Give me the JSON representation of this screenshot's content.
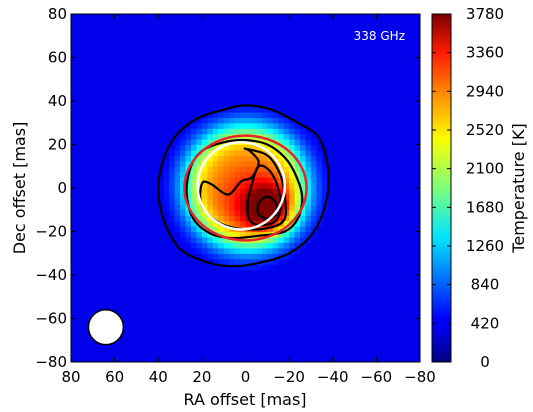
{
  "chart_data": {
    "type": "heatmap",
    "title": "",
    "annotation": "338 GHz",
    "xlabel": "RA offset [mas]",
    "ylabel": "Dec offset [mas]",
    "xlim": [
      80,
      -80
    ],
    "ylim": [
      -80,
      80
    ],
    "x_ticks": [
      80,
      60,
      40,
      20,
      0,
      -20,
      -40,
      -60,
      -80
    ],
    "x_tick_labels": [
      "80",
      "60",
      "40",
      "20",
      "0",
      "−20",
      "−40",
      "−60",
      "−80"
    ],
    "y_ticks": [
      80,
      60,
      40,
      20,
      0,
      -20,
      -40,
      -60,
      -80
    ],
    "y_tick_labels": [
      "80",
      "60",
      "40",
      "20",
      "0",
      "−20",
      "−40",
      "−60",
      "−80"
    ],
    "colorbar": {
      "label": "Temperature [K]",
      "range": [
        0,
        3780
      ],
      "ticks": [
        0,
        420,
        840,
        1260,
        1680,
        2100,
        2520,
        2940,
        3360,
        3780
      ],
      "tick_labels": [
        "0",
        "420",
        "840",
        "1260",
        "1680",
        "2100",
        "2520",
        "2940",
        "3360",
        "3780"
      ],
      "colormap": "jet"
    },
    "background_temperature": 0,
    "hotspot": {
      "x": -10,
      "y": -9,
      "temperature": 3700
    },
    "disk_center": {
      "x": 0,
      "y": 1
    },
    "red_ellipse": {
      "x": 0,
      "y": 0,
      "rx": 28,
      "ry": 24
    },
    "white_circle": {
      "x": 2,
      "y": 1,
      "r": 20
    },
    "beam": {
      "x": 64,
      "y": -64,
      "diameter": 16
    },
    "contours": [
      {
        "name": "outer",
        "points": [
          [
            0,
            38
          ],
          [
            -12,
            36
          ],
          [
            -24,
            30
          ],
          [
            -33,
            24
          ],
          [
            -37,
            14
          ],
          [
            -38,
            2
          ],
          [
            -36,
            -10
          ],
          [
            -30,
            -22
          ],
          [
            -20,
            -30
          ],
          [
            -8,
            -34
          ],
          [
            5,
            -36
          ],
          [
            18,
            -34
          ],
          [
            30,
            -28
          ],
          [
            37,
            -16
          ],
          [
            40,
            -2
          ],
          [
            38,
            12
          ],
          [
            32,
            24
          ],
          [
            22,
            32
          ],
          [
            10,
            36
          ]
        ]
      },
      {
        "name": "middle",
        "points": [
          [
            0,
            22
          ],
          [
            -10,
            20
          ],
          [
            -18,
            14
          ],
          [
            -23,
            6
          ],
          [
            -26,
            -4
          ],
          [
            -24,
            -14
          ],
          [
            -18,
            -20
          ],
          [
            -6,
            -22
          ],
          [
            6,
            -23
          ],
          [
            16,
            -21
          ],
          [
            24,
            -14
          ],
          [
            27,
            -2
          ],
          [
            25,
            10
          ],
          [
            20,
            17
          ],
          [
            10,
            21
          ]
        ]
      },
      {
        "name": "inner",
        "points": [
          [
            0,
            18
          ],
          [
            -10,
            15
          ],
          [
            -16,
            6
          ],
          [
            -18,
            -4
          ],
          [
            -18,
            -14
          ],
          [
            -12,
            -18
          ],
          [
            0,
            -19
          ],
          [
            12,
            -16
          ],
          [
            20,
            -8
          ],
          [
            20,
            2
          ],
          [
            16,
            2
          ],
          [
            8,
            -3
          ],
          [
            2,
            3
          ],
          [
            -3,
            5
          ],
          [
            -6,
            12
          ],
          [
            -2,
            17
          ]
        ]
      },
      {
        "name": "hot1",
        "points": [
          [
            -6,
            10
          ],
          [
            -11,
            8
          ],
          [
            -15,
            0
          ],
          [
            -16,
            -9
          ],
          [
            -14,
            -15
          ],
          [
            -8,
            -17
          ],
          [
            -2,
            -15
          ],
          [
            -1,
            -7
          ],
          [
            -3,
            2
          ]
        ]
      },
      {
        "name": "hot2",
        "points": [
          [
            -10,
            -4
          ],
          [
            -14,
            -7
          ],
          [
            -14,
            -12
          ],
          [
            -10,
            -14
          ],
          [
            -6,
            -12
          ],
          [
            -6,
            -7
          ]
        ]
      }
    ]
  }
}
